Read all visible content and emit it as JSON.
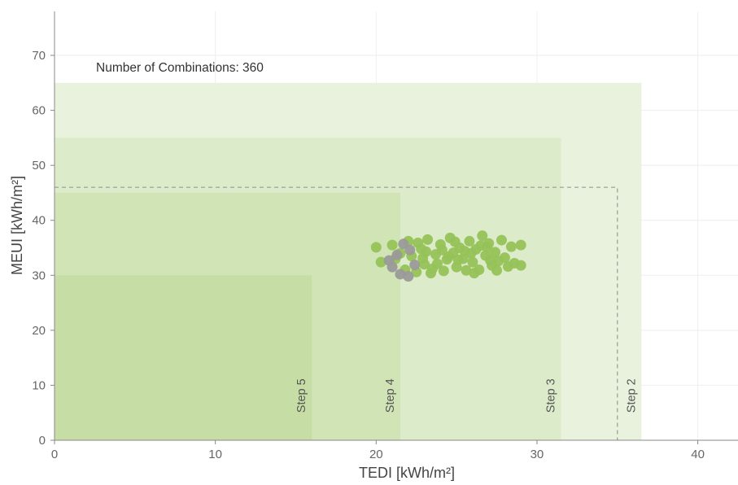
{
  "chart_data": {
    "type": "scatter",
    "xlabel": "TEDI [kWh/m²]",
    "ylabel": "MEUI [kWh/m²]",
    "xlim": [
      0,
      42.5
    ],
    "ylim": [
      0,
      78
    ],
    "x_ticks": [
      0,
      10,
      20,
      30,
      40
    ],
    "y_ticks": [
      0,
      10,
      20,
      30,
      40,
      50,
      60,
      70
    ],
    "grid": true,
    "annotation": "Number of Combinations: 360",
    "step_regions": [
      {
        "label": "Step 2",
        "tedi": 36.5,
        "meui": 65,
        "color": "#e8f2dc"
      },
      {
        "label": "Step 3",
        "tedi": 31.5,
        "meui": 55,
        "color": "#dcebc9"
      },
      {
        "label": "Step 4",
        "tedi": 21.5,
        "meui": 45,
        "color": "#d0e4b6"
      },
      {
        "label": "Step 5",
        "tedi": 16,
        "meui": 30,
        "color": "#c6dea5"
      }
    ],
    "target_box": {
      "tedi": 35,
      "meui": 46,
      "style": "dashed"
    },
    "series": [
      {
        "color": "#96c358",
        "points": [
          [
            20.0,
            35.1
          ],
          [
            20.3,
            32.4
          ],
          [
            21.0,
            35.5
          ],
          [
            21.5,
            34.0
          ],
          [
            21.8,
            31.0
          ],
          [
            22.0,
            36.2
          ],
          [
            22.2,
            33.5
          ],
          [
            22.5,
            30.6
          ],
          [
            22.8,
            34.8
          ],
          [
            23.0,
            32.0
          ],
          [
            23.2,
            36.5
          ],
          [
            23.5,
            31.2
          ],
          [
            23.7,
            33.8
          ],
          [
            24.0,
            35.6
          ],
          [
            24.2,
            30.8
          ],
          [
            24.4,
            32.9
          ],
          [
            24.6,
            36.8
          ],
          [
            24.8,
            34.1
          ],
          [
            25.0,
            31.5
          ],
          [
            25.2,
            35.0
          ],
          [
            25.4,
            33.0
          ],
          [
            25.6,
            30.9
          ],
          [
            25.8,
            36.2
          ],
          [
            26.0,
            32.4
          ],
          [
            26.2,
            34.7
          ],
          [
            26.4,
            31.0
          ],
          [
            26.6,
            37.2
          ],
          [
            26.8,
            33.6
          ],
          [
            27.0,
            35.8
          ],
          [
            27.2,
            31.8
          ],
          [
            27.4,
            34.2
          ],
          [
            27.6,
            32.6
          ],
          [
            27.8,
            36.4
          ],
          [
            28.0,
            33.2
          ],
          [
            28.2,
            31.6
          ],
          [
            28.4,
            35.2
          ],
          [
            28.6,
            32.2
          ],
          [
            29.0,
            35.5
          ],
          [
            29.0,
            31.8
          ],
          [
            21.2,
            33.0
          ],
          [
            22.6,
            35.9
          ],
          [
            23.4,
            30.4
          ],
          [
            24.5,
            33.4
          ],
          [
            25.5,
            34.4
          ],
          [
            26.5,
            35.4
          ],
          [
            27.5,
            30.9
          ],
          [
            23.8,
            32.1
          ],
          [
            24.9,
            36.1
          ],
          [
            26.1,
            30.4
          ],
          [
            22.9,
            33.1
          ],
          [
            25.9,
            34.0
          ],
          [
            27.1,
            32.7
          ],
          [
            24.1,
            34.6
          ],
          [
            23.1,
            34.3
          ],
          [
            26.9,
            35.1
          ],
          [
            25.1,
            32.8
          ]
        ]
      },
      {
        "color": "#9a9a98",
        "points": [
          [
            21.0,
            31.5
          ],
          [
            21.5,
            30.2
          ],
          [
            21.7,
            35.7
          ],
          [
            22.0,
            29.8
          ],
          [
            22.1,
            34.6
          ],
          [
            21.3,
            33.7
          ],
          [
            20.8,
            32.7
          ],
          [
            22.4,
            31.9
          ]
        ]
      }
    ]
  }
}
